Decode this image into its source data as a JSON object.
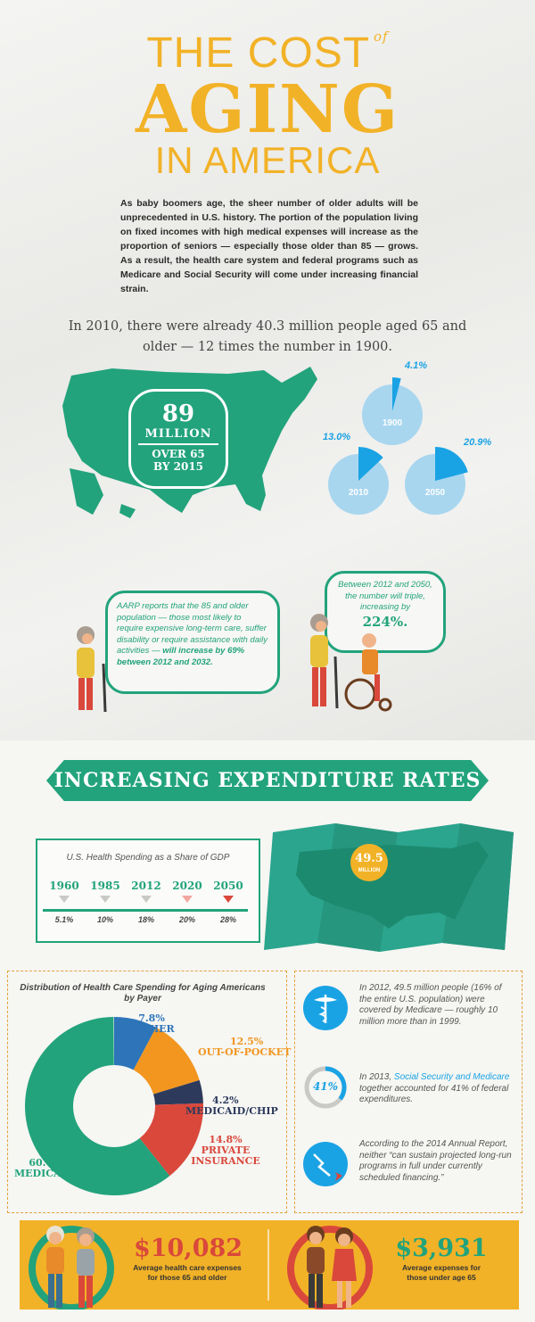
{
  "title": {
    "line1": "THE COST",
    "of": "of",
    "line2": "AGING",
    "line3": "IN AMERICA"
  },
  "intro": "As baby boomers age, the sheer number of older adults will be unprecedented in U.S. history. The portion of the population living on fixed incomes with high medical expenses will increase as the proportion of seniors — especially those older than 85 — grows. As a result, the health care system and federal programs such as Medicare and Social Security will come under increasing financial strain.",
  "fact": "In 2010, there were already 40.3 million people aged 65 and older — 12 times the number in 1900.",
  "map_badge": {
    "number": "89",
    "unit": "MILLION",
    "sub1": "OVER 65",
    "sub2": "BY 2015"
  },
  "pies": [
    {
      "year": "1900",
      "pct": "4.1%",
      "value": 4.1
    },
    {
      "year": "2010",
      "pct": "13.0%",
      "value": 13.0
    },
    {
      "year": "2050",
      "pct": "20.9%",
      "value": 20.9
    }
  ],
  "bubble_left": {
    "text": "AARP reports that the 85 and older population — those most likely to require expensive long-term care, suffer disability or require assistance with daily activities — ",
    "bold": "will increase by 69% between 2012 and 2032."
  },
  "bubble_right": {
    "text": "Between 2012 and 2050, the number will triple, increasing by",
    "big": "224%."
  },
  "banner": "INCREASING EXPENDITURE RATES",
  "gdp": {
    "title": "U.S. Health Spending as a Share of GDP",
    "years": [
      "1960",
      "1985",
      "2012",
      "2020",
      "2050"
    ],
    "pcts": [
      "5.1%",
      "10%",
      "18%",
      "20%",
      "28%"
    ]
  },
  "map2_badge": {
    "number": "49.5",
    "unit": "MILLION"
  },
  "distribution": {
    "title": "Distribution of Health Care Spending for Aging Americans by Payer",
    "slices": [
      {
        "pct": "7.8%",
        "label": "OTHER",
        "value": 7.8,
        "color": "#2d74b9"
      },
      {
        "pct": "12.5%",
        "label": "OUT-OF-POCKET",
        "value": 12.5,
        "color": "#f2961f"
      },
      {
        "pct": "4.2%",
        "label": "MEDICAID/CHIP",
        "value": 4.2,
        "color": "#2d3a5c"
      },
      {
        "pct": "14.8%",
        "label1": "PRIVATE",
        "label2": "INSURANCE",
        "value": 14.8,
        "color": "#d9483b"
      },
      {
        "pct": "60.6%",
        "label": "MEDICARE",
        "value": 60.6,
        "color": "#22a37b"
      }
    ]
  },
  "info": {
    "medicare": "In 2012, 49.5 million people (16% of the entire U.S. population) were covered by Medicare — roughly 10 million more than in 1999.",
    "federal_pre": "In 2013, ",
    "federal_link": "Social Security and Medicare",
    "federal_post": " together accounted for 41% of federal expenditures.",
    "federal_badge": "41%",
    "report": "According to the 2014 Annual Report, neither “can sustain projected long-run programs in full under currently scheduled financing.”"
  },
  "costs": [
    {
      "amount": "$10,082",
      "caption1": "Average health care expenses",
      "caption2": "for those 65 and older",
      "color": "#d9483b"
    },
    {
      "amount": "$3,931",
      "caption1": "Average expenses for",
      "caption2": "those under age 65",
      "color": "#22a37b"
    }
  ]
}
